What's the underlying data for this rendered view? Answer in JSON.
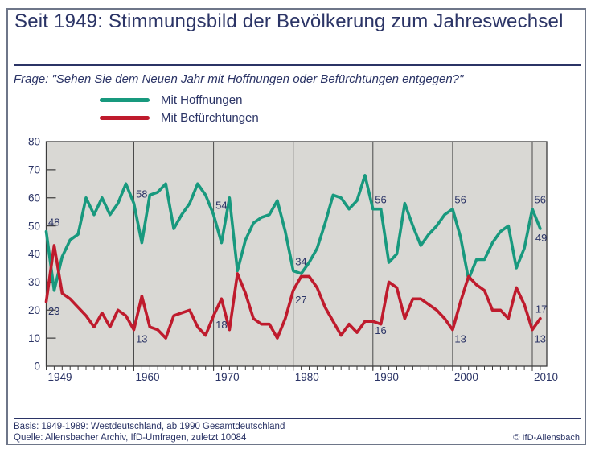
{
  "card": {
    "title": "Seit 1949: Stimmungsbild der Bevölkerung zum Jahreswechsel",
    "question": "Frage: \"Sehen Sie dem Neuen Jahr mit Hoffnungen oder Befürchtungen entgegen?\""
  },
  "colors": {
    "hope": "#18997E",
    "fear": "#BF1B2D",
    "text_navy": "#2B3466",
    "plot_bg": "#D9D8D4",
    "grid": "#4A4A4A",
    "frame": "#3C3C3C"
  },
  "legend": [
    {
      "label": "Mit Hoffnungen",
      "color_key": "hope"
    },
    {
      "label": "Mit Befürchtungen",
      "color_key": "fear"
    }
  ],
  "footer": {
    "basis": "Basis: 1949-1989: Westdeutschland, ab 1990 Gesamtdeutschland",
    "quelle": "Quelle: Allensbacher Archiv, IfD-Umfragen, zuletzt 10084",
    "copyright": "© IfD-Allensbach"
  },
  "chart_data": {
    "type": "line",
    "title": "Seit 1949: Stimmungsbild der Bevölkerung zum Jahreswechsel",
    "xlabel": "",
    "ylabel": "",
    "ylim": [
      0,
      80
    ],
    "yticks": [
      0,
      10,
      20,
      30,
      40,
      50,
      60,
      70,
      80
    ],
    "x": [
      1949,
      1950,
      1951,
      1952,
      1953,
      1954,
      1955,
      1956,
      1957,
      1958,
      1959,
      1960,
      1961,
      1962,
      1963,
      1964,
      1965,
      1966,
      1967,
      1968,
      1969,
      1970,
      1971,
      1972,
      1973,
      1974,
      1975,
      1976,
      1977,
      1978,
      1979,
      1980,
      1981,
      1982,
      1983,
      1984,
      1985,
      1986,
      1987,
      1988,
      1989,
      1990,
      1991,
      1992,
      1993,
      1994,
      1995,
      1996,
      1997,
      1998,
      1999,
      2000,
      2001,
      2002,
      2003,
      2004,
      2005,
      2006,
      2007,
      2008,
      2009,
      2010,
      2011
    ],
    "xtick_labels": [
      1949,
      1960,
      1970,
      1980,
      1990,
      2000,
      2010
    ],
    "grid_decades": [
      1960,
      1970,
      1980,
      1990,
      2000,
      2010
    ],
    "legend_position": "top-left",
    "series": [
      {
        "name": "Mit Hoffnungen",
        "color": "#18997E",
        "values": [
          48,
          27,
          39,
          45,
          47,
          60,
          54,
          60,
          54,
          58,
          65,
          58,
          44,
          61,
          62,
          65,
          49,
          54,
          58,
          65,
          61,
          54,
          44,
          60,
          34,
          45,
          51,
          53,
          54,
          59,
          48,
          34,
          33,
          37,
          42,
          51,
          61,
          60,
          56,
          59,
          68,
          56,
          56,
          37,
          40,
          58,
          50,
          43,
          47,
          50,
          54,
          56,
          46,
          31,
          38,
          38,
          44,
          48,
          50,
          35,
          42,
          56,
          49
        ]
      },
      {
        "name": "Mit Befürchtungen",
        "color": "#BF1B2D",
        "values": [
          23,
          43,
          26,
          24,
          21,
          18,
          14,
          19,
          14,
          20,
          18,
          13,
          25,
          14,
          13,
          10,
          18,
          19,
          20,
          14,
          11,
          18,
          24,
          13,
          33,
          26,
          17,
          15,
          15,
          10,
          17,
          27,
          32,
          32,
          28,
          21,
          16,
          11,
          15,
          12,
          16,
          16,
          15,
          30,
          28,
          17,
          24,
          24,
          22,
          20,
          17,
          13,
          23,
          32,
          29,
          27,
          20,
          20,
          17,
          28,
          22,
          13,
          17
        ]
      }
    ],
    "annotations": [
      {
        "year": 1949,
        "series": "hope",
        "text": "48",
        "value": 48,
        "pos": "above"
      },
      {
        "year": 1949,
        "series": "fear",
        "text": "23",
        "value": 23,
        "pos": "below"
      },
      {
        "year": 1960,
        "series": "hope",
        "text": "58",
        "value": 58,
        "pos": "above"
      },
      {
        "year": 1960,
        "series": "fear",
        "text": "13",
        "value": 13,
        "pos": "below"
      },
      {
        "year": 1970,
        "series": "hope",
        "text": "54",
        "value": 54,
        "pos": "above"
      },
      {
        "year": 1970,
        "series": "fear",
        "text": "18",
        "value": 18,
        "pos": "below"
      },
      {
        "year": 1980,
        "series": "hope",
        "text": "34",
        "value": 34,
        "pos": "above"
      },
      {
        "year": 1980,
        "series": "fear",
        "text": "27",
        "value": 27,
        "pos": "below"
      },
      {
        "year": 1990,
        "series": "hope",
        "text": "56",
        "value": 56,
        "pos": "above"
      },
      {
        "year": 1990,
        "series": "fear",
        "text": "16",
        "value": 16,
        "pos": "below"
      },
      {
        "year": 2000,
        "series": "hope",
        "text": "56",
        "value": 56,
        "pos": "above"
      },
      {
        "year": 2000,
        "series": "fear",
        "text": "13",
        "value": 13,
        "pos": "below"
      },
      {
        "year": 2010,
        "series": "hope",
        "text": "56",
        "value": 56,
        "pos": "above"
      },
      {
        "year": 2010,
        "series": "fear",
        "text": "13",
        "value": 13,
        "pos": "below"
      },
      {
        "year": 2011,
        "series": "hope",
        "text": "49",
        "value": 49,
        "pos": "below"
      },
      {
        "year": 2011,
        "series": "fear",
        "text": "17",
        "value": 17,
        "pos": "above"
      }
    ]
  }
}
